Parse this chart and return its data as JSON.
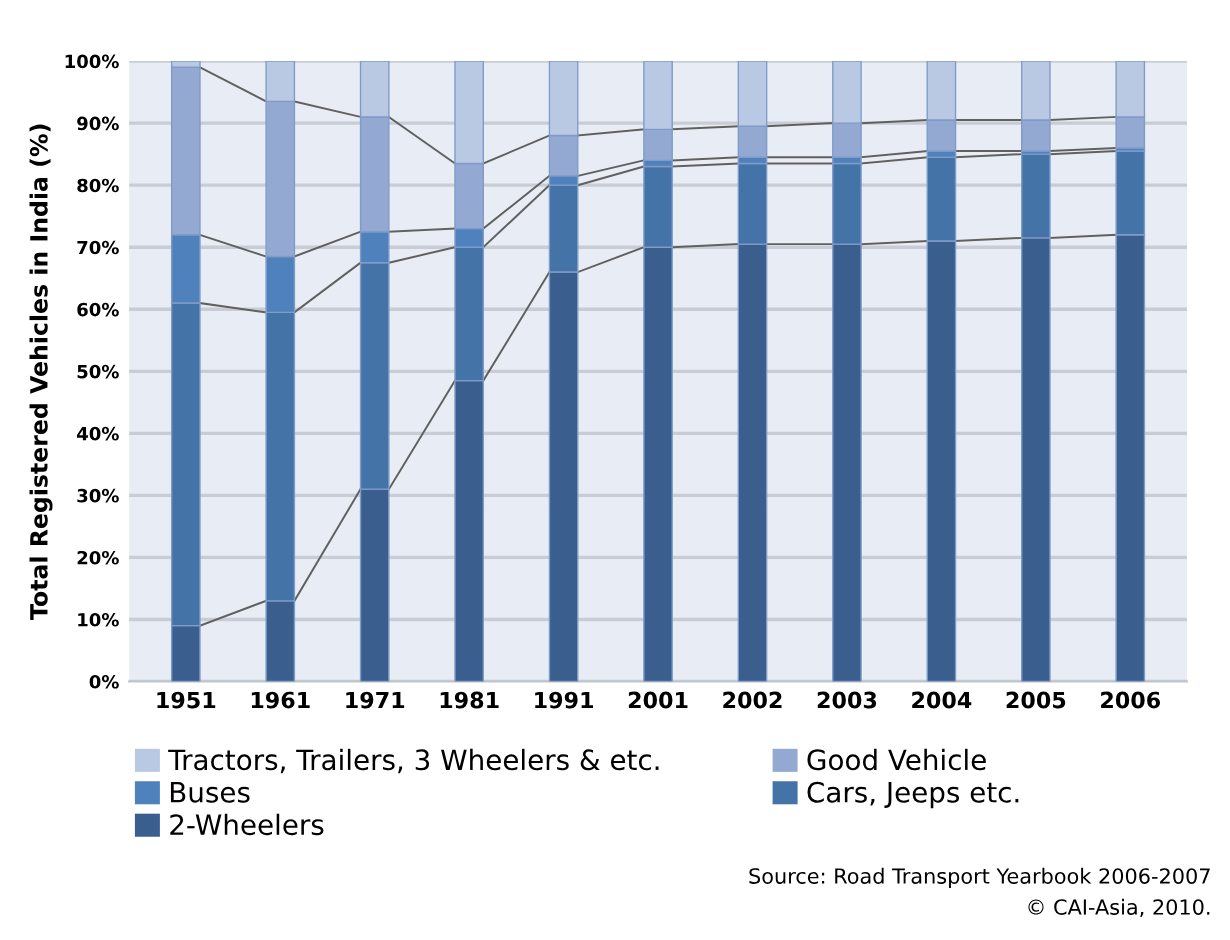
{
  "chart_data": {
    "type": "bar",
    "stacked": true,
    "ylabel": "Total Registered Vehicles in India (%)",
    "categories": [
      "1951",
      "1961",
      "1971",
      "1981",
      "1991",
      "2001",
      "2002",
      "2003",
      "2004",
      "2005",
      "2006"
    ],
    "series": [
      {
        "name": "2-Wheelers",
        "color": "#3a5f8e",
        "values": [
          9,
          13,
          31,
          48.5,
          66,
          70,
          70.5,
          70.5,
          71,
          71.5,
          72
        ]
      },
      {
        "name": "Cars, Jeeps etc.",
        "color": "#4473a8",
        "values": [
          52,
          46.5,
          36.5,
          21.5,
          14,
          13,
          13,
          13,
          13.5,
          13.5,
          13.5
        ]
      },
      {
        "name": "Buses",
        "color": "#4f81bd",
        "values": [
          11,
          9,
          5,
          3,
          1.5,
          1,
          1,
          1,
          1,
          0.5,
          0.5
        ]
      },
      {
        "name": "Good Vehicle",
        "color": "#93a9d1",
        "values": [
          27,
          25,
          18.5,
          10.5,
          6.5,
          5,
          5,
          5.5,
          5,
          5,
          5
        ]
      },
      {
        "name": "Tractors, Trailers, 3 Wheelers & etc.",
        "color": "#b9c9e3",
        "values": [
          1,
          6.5,
          9,
          16.5,
          12,
          11,
          10.5,
          10,
          9.5,
          9.5,
          9
        ]
      }
    ],
    "ylim": [
      0,
      100
    ],
    "yticks": [
      {
        "value": 0,
        "label": "0%"
      },
      {
        "value": 10,
        "label": "10%"
      },
      {
        "value": 20,
        "label": "20%"
      },
      {
        "value": 30,
        "label": "30%"
      },
      {
        "value": 40,
        "label": "40%"
      },
      {
        "value": 50,
        "label": "50%"
      },
      {
        "value": 60,
        "label": "60%"
      },
      {
        "value": 70,
        "label": "70%"
      },
      {
        "value": 80,
        "label": "80%"
      },
      {
        "value": 90,
        "label": "90%"
      },
      {
        "value": 100,
        "label": "100%"
      }
    ],
    "grid": "y",
    "legend": "bottom",
    "annotations": [
      "Source: Road Transport Yearbook 2006-2007",
      "© CAI-Asia, 2010."
    ]
  }
}
